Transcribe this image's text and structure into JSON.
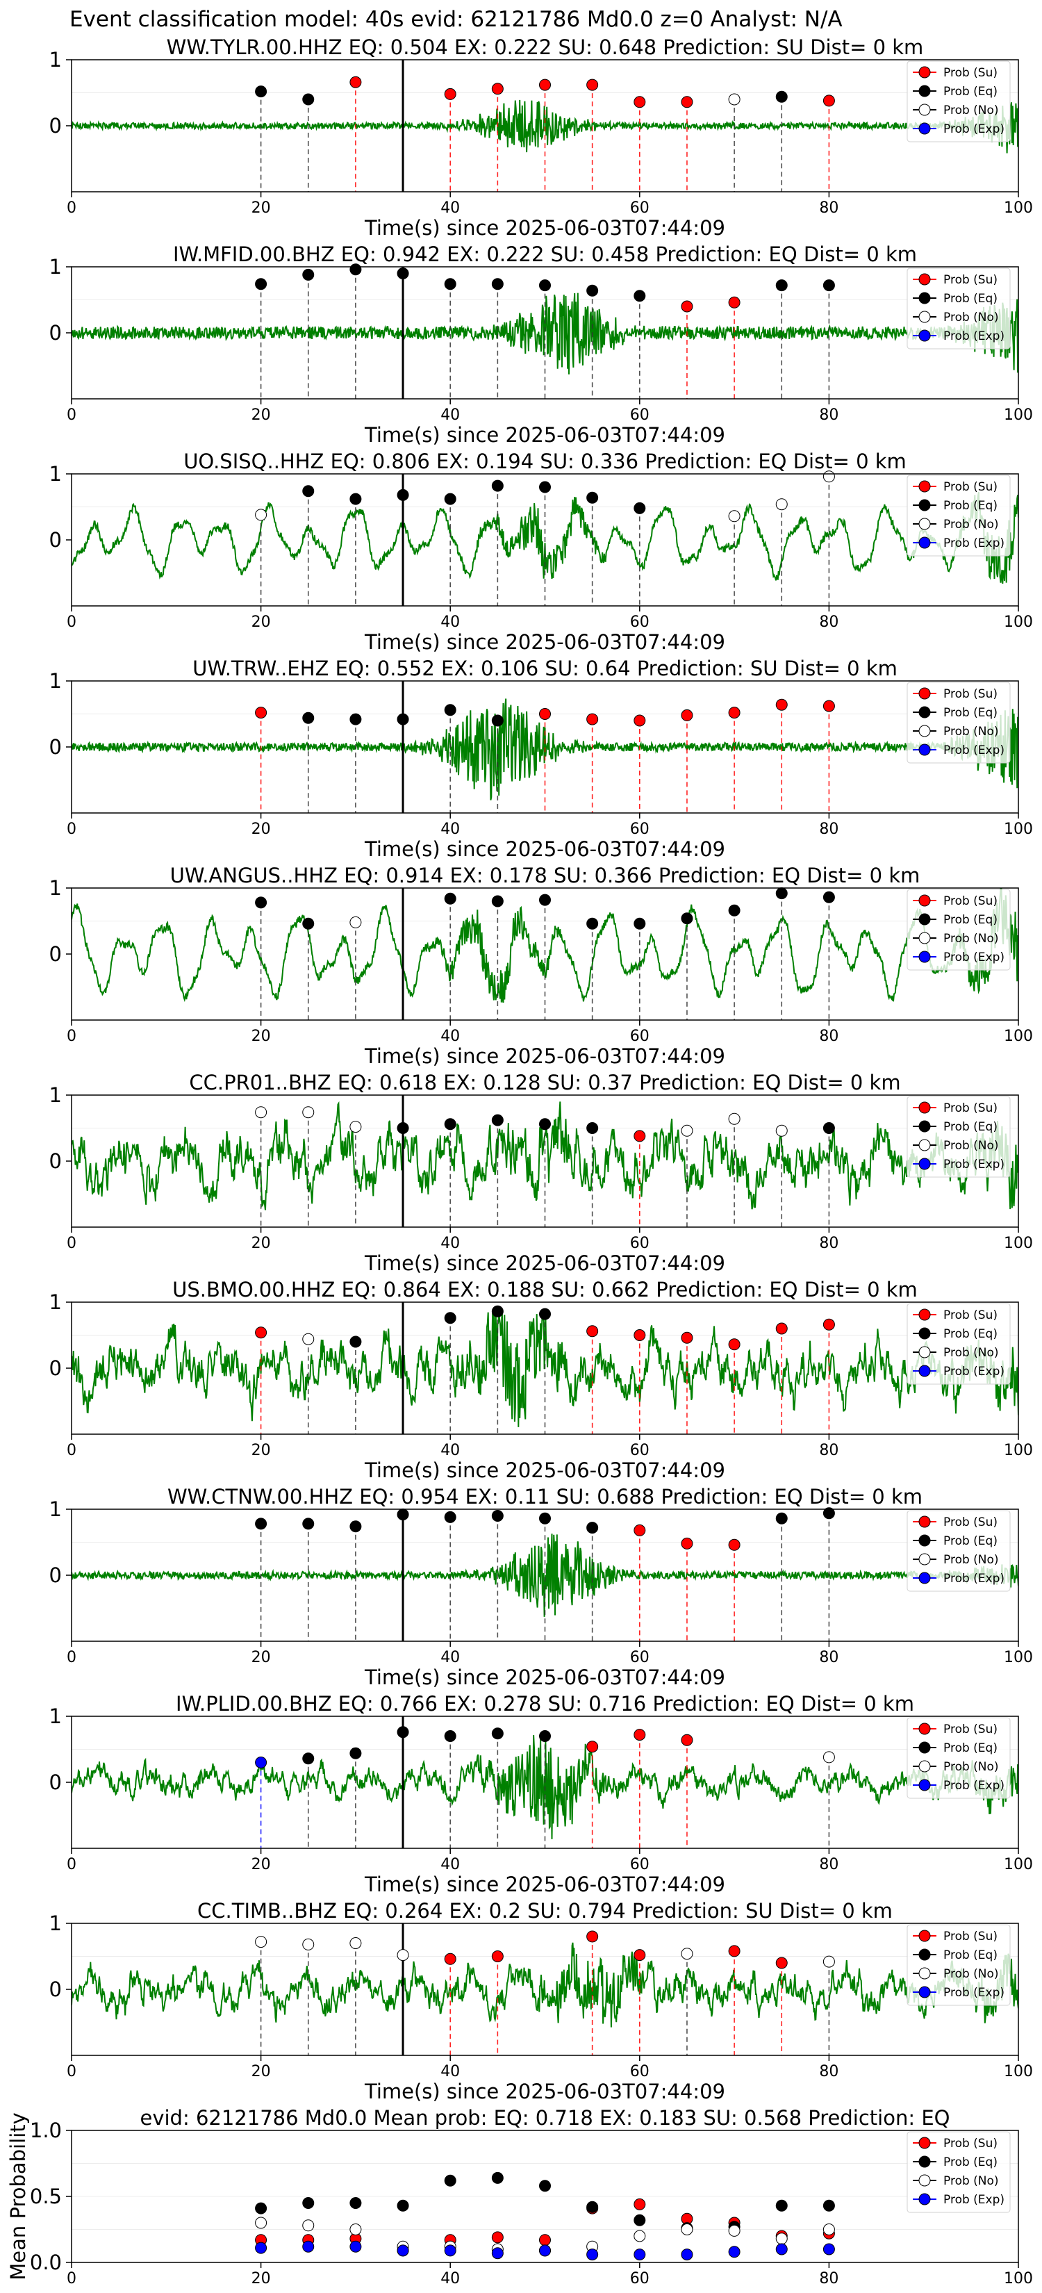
{
  "figure_title": "Event classification model: 40s evid: 62121786 Md0.0 z=0 Analyst: N/A",
  "legend_labels": [
    "Prob (Su)",
    "Prob (Eq)",
    "Prob (No)",
    "Prob (Exp)"
  ],
  "colors": {
    "su": "#ff0000",
    "eq": "#000000",
    "no": "#ffffff",
    "exp": "#0000ff",
    "waveform": "#008000"
  },
  "chart_data": [
    {
      "type": "line",
      "title": "WW.TYLR.00.HHZ   EQ: 0.504  EX: 0.222  SU: 0.648   Prediction: SU    Dist= 0 km",
      "xlabel": "Time(s) since 2025-06-03T07:44:09",
      "xlim": [
        0,
        100
      ],
      "ylim": [
        -1,
        1
      ],
      "xticks": [
        "0",
        "20",
        "40",
        "60",
        "80",
        "100"
      ],
      "yticks": [
        "1",
        "0"
      ],
      "waveform": {
        "style": "quiet",
        "amp": 0.06,
        "burst_center": 48,
        "burst_amp": 0.35,
        "tail_amp": 0.45
      },
      "pick_time": 35,
      "points": [
        {
          "x": 20,
          "y": 0.52,
          "cls": "eq"
        },
        {
          "x": 25,
          "y": 0.4,
          "cls": "eq"
        },
        {
          "x": 30,
          "y": 0.66,
          "cls": "su"
        },
        {
          "x": 40,
          "y": 0.48,
          "cls": "su"
        },
        {
          "x": 45,
          "y": 0.56,
          "cls": "su"
        },
        {
          "x": 50,
          "y": 0.62,
          "cls": "su"
        },
        {
          "x": 55,
          "y": 0.62,
          "cls": "su"
        },
        {
          "x": 60,
          "y": 0.36,
          "cls": "su"
        },
        {
          "x": 65,
          "y": 0.36,
          "cls": "su"
        },
        {
          "x": 70,
          "y": 0.4,
          "cls": "no"
        },
        {
          "x": 75,
          "y": 0.44,
          "cls": "eq"
        },
        {
          "x": 80,
          "y": 0.38,
          "cls": "su"
        }
      ]
    },
    {
      "type": "line",
      "title": "IW.MFID.00.BHZ   EQ: 0.942  EX: 0.222  SU: 0.458   Prediction: EQ    Dist= 0 km",
      "xlabel": "Time(s) since 2025-06-03T07:44:09",
      "xlim": [
        0,
        100
      ],
      "ylim": [
        -1,
        1
      ],
      "xticks": [
        "0",
        "20",
        "40",
        "60",
        "80",
        "100"
      ],
      "yticks": [
        "1",
        "0"
      ],
      "waveform": {
        "style": "quiet",
        "amp": 0.12,
        "burst_center": 52,
        "burst_amp": 0.6,
        "tail_amp": 0.6
      },
      "pick_time": 35,
      "points": [
        {
          "x": 20,
          "y": 0.74,
          "cls": "eq"
        },
        {
          "x": 25,
          "y": 0.88,
          "cls": "eq"
        },
        {
          "x": 30,
          "y": 0.96,
          "cls": "eq"
        },
        {
          "x": 35,
          "y": 0.9,
          "cls": "eq"
        },
        {
          "x": 40,
          "y": 0.74,
          "cls": "eq"
        },
        {
          "x": 45,
          "y": 0.74,
          "cls": "eq"
        },
        {
          "x": 50,
          "y": 0.72,
          "cls": "eq"
        },
        {
          "x": 55,
          "y": 0.64,
          "cls": "eq"
        },
        {
          "x": 60,
          "y": 0.56,
          "cls": "eq"
        },
        {
          "x": 65,
          "y": 0.4,
          "cls": "su"
        },
        {
          "x": 70,
          "y": 0.46,
          "cls": "su"
        },
        {
          "x": 75,
          "y": 0.72,
          "cls": "eq"
        },
        {
          "x": 80,
          "y": 0.72,
          "cls": "eq"
        }
      ]
    },
    {
      "type": "line",
      "title": "UO.SISQ..HHZ  EQ: 0.806  EX: 0.194  SU: 0.336   Prediction: EQ    Dist= 0 km",
      "xlabel": "Time(s) since 2025-06-03T07:44:09",
      "xlim": [
        0,
        100
      ],
      "ylim": [
        -1,
        1
      ],
      "xticks": [
        "0",
        "20",
        "40",
        "60",
        "80",
        "100"
      ],
      "yticks": [
        "1",
        "0"
      ],
      "waveform": {
        "style": "smooth",
        "amp": 0.55,
        "burst_center": 50,
        "burst_amp": 0.3,
        "tail_amp": 0.5
      },
      "pick_time": 35,
      "points": [
        {
          "x": 20,
          "y": 0.38,
          "cls": "no"
        },
        {
          "x": 25,
          "y": 0.74,
          "cls": "eq"
        },
        {
          "x": 30,
          "y": 0.62,
          "cls": "eq"
        },
        {
          "x": 35,
          "y": 0.68,
          "cls": "eq"
        },
        {
          "x": 40,
          "y": 0.62,
          "cls": "eq"
        },
        {
          "x": 45,
          "y": 0.82,
          "cls": "eq"
        },
        {
          "x": 50,
          "y": 0.8,
          "cls": "eq"
        },
        {
          "x": 55,
          "y": 0.64,
          "cls": "eq"
        },
        {
          "x": 60,
          "y": 0.48,
          "cls": "eq"
        },
        {
          "x": 70,
          "y": 0.36,
          "cls": "no"
        },
        {
          "x": 75,
          "y": 0.54,
          "cls": "no"
        },
        {
          "x": 80,
          "y": 0.96,
          "cls": "no"
        }
      ]
    },
    {
      "type": "line",
      "title": "UW.TRW..EHZ   EQ: 0.552  EX: 0.106  SU: 0.64   Prediction: SU    Dist= 0 km",
      "xlabel": "Time(s) since 2025-06-03T07:44:09",
      "xlim": [
        0,
        100
      ],
      "ylim": [
        -1,
        1
      ],
      "xticks": [
        "0",
        "20",
        "40",
        "60",
        "80",
        "100"
      ],
      "yticks": [
        "1",
        "0"
      ],
      "waveform": {
        "style": "quiet",
        "amp": 0.08,
        "burst_center": 45,
        "burst_amp": 0.75,
        "tail_amp": 0.7
      },
      "pick_time": 35,
      "points": [
        {
          "x": 20,
          "y": 0.52,
          "cls": "su"
        },
        {
          "x": 25,
          "y": 0.44,
          "cls": "eq"
        },
        {
          "x": 30,
          "y": 0.42,
          "cls": "eq"
        },
        {
          "x": 35,
          "y": 0.42,
          "cls": "eq"
        },
        {
          "x": 40,
          "y": 0.56,
          "cls": "eq"
        },
        {
          "x": 45,
          "y": 0.4,
          "cls": "eq"
        },
        {
          "x": 50,
          "y": 0.5,
          "cls": "su"
        },
        {
          "x": 55,
          "y": 0.42,
          "cls": "su"
        },
        {
          "x": 60,
          "y": 0.4,
          "cls": "su"
        },
        {
          "x": 65,
          "y": 0.48,
          "cls": "su"
        },
        {
          "x": 70,
          "y": 0.52,
          "cls": "su"
        },
        {
          "x": 75,
          "y": 0.64,
          "cls": "su"
        },
        {
          "x": 80,
          "y": 0.62,
          "cls": "su"
        }
      ]
    },
    {
      "type": "line",
      "title": "UW.ANGUS..HHZ   EQ: 0.914  EX: 0.178  SU: 0.366   Prediction: EQ    Dist= 0 km",
      "xlabel": "Time(s) since 2025-06-03T07:44:09",
      "xlim": [
        0,
        100
      ],
      "ylim": [
        -1,
        1
      ],
      "xticks": [
        "0",
        "20",
        "40",
        "60",
        "80",
        "100"
      ],
      "yticks": [
        "1",
        "0"
      ],
      "waveform": {
        "style": "smooth",
        "amp": 0.7,
        "burst_center": 45,
        "burst_amp": 0.3,
        "tail_amp": 0.6
      },
      "pick_time": 35,
      "points": [
        {
          "x": 20,
          "y": 0.78,
          "cls": "eq"
        },
        {
          "x": 25,
          "y": 0.46,
          "cls": "eq"
        },
        {
          "x": 30,
          "y": 0.48,
          "cls": "no"
        },
        {
          "x": 40,
          "y": 0.84,
          "cls": "eq"
        },
        {
          "x": 45,
          "y": 0.8,
          "cls": "eq"
        },
        {
          "x": 50,
          "y": 0.82,
          "cls": "eq"
        },
        {
          "x": 55,
          "y": 0.46,
          "cls": "eq"
        },
        {
          "x": 60,
          "y": 0.46,
          "cls": "eq"
        },
        {
          "x": 65,
          "y": 0.54,
          "cls": "eq"
        },
        {
          "x": 70,
          "y": 0.66,
          "cls": "eq"
        },
        {
          "x": 75,
          "y": 0.92,
          "cls": "eq"
        },
        {
          "x": 80,
          "y": 0.86,
          "cls": "eq"
        }
      ]
    },
    {
      "type": "line",
      "title": "CC.PR01..BHZ   EQ: 0.618  EX: 0.128  SU: 0.37   Prediction: EQ    Dist= 0 km",
      "xlabel": "Time(s) since 2025-06-03T07:44:09",
      "xlim": [
        0,
        100
      ],
      "ylim": [
        -1,
        1
      ],
      "xticks": [
        "0",
        "20",
        "40",
        "60",
        "80",
        "100"
      ],
      "yticks": [
        "1",
        "0"
      ],
      "waveform": {
        "style": "noisy",
        "amp": 0.45,
        "burst_center": 50,
        "burst_amp": 0.2,
        "tail_amp": 0.45
      },
      "pick_time": 35,
      "points": [
        {
          "x": 20,
          "y": 0.74,
          "cls": "no"
        },
        {
          "x": 25,
          "y": 0.74,
          "cls": "no"
        },
        {
          "x": 30,
          "y": 0.52,
          "cls": "no"
        },
        {
          "x": 35,
          "y": 0.5,
          "cls": "eq"
        },
        {
          "x": 40,
          "y": 0.56,
          "cls": "eq"
        },
        {
          "x": 45,
          "y": 0.62,
          "cls": "eq"
        },
        {
          "x": 50,
          "y": 0.56,
          "cls": "eq"
        },
        {
          "x": 55,
          "y": 0.5,
          "cls": "eq"
        },
        {
          "x": 60,
          "y": 0.38,
          "cls": "su"
        },
        {
          "x": 65,
          "y": 0.46,
          "cls": "no"
        },
        {
          "x": 70,
          "y": 0.64,
          "cls": "no"
        },
        {
          "x": 75,
          "y": 0.46,
          "cls": "no"
        },
        {
          "x": 80,
          "y": 0.5,
          "cls": "eq"
        }
      ]
    },
    {
      "type": "line",
      "title": "US.BMO.00.HHZ   EQ: 0.864  EX: 0.188  SU: 0.662   Prediction: EQ    Dist= 0 km",
      "xlabel": "Time(s) since 2025-06-03T07:44:09",
      "xlim": [
        0,
        100
      ],
      "ylim": [
        -1,
        1
      ],
      "xticks": [
        "0",
        "20",
        "40",
        "60",
        "80",
        "100"
      ],
      "yticks": [
        "1",
        "0"
      ],
      "waveform": {
        "style": "noisy",
        "amp": 0.4,
        "burst_center": 47,
        "burst_amp": 0.55,
        "tail_amp": 0.4
      },
      "pick_time": 35,
      "points": [
        {
          "x": 20,
          "y": 0.54,
          "cls": "su"
        },
        {
          "x": 25,
          "y": 0.44,
          "cls": "no"
        },
        {
          "x": 30,
          "y": 0.4,
          "cls": "eq"
        },
        {
          "x": 40,
          "y": 0.76,
          "cls": "eq"
        },
        {
          "x": 45,
          "y": 0.86,
          "cls": "eq"
        },
        {
          "x": 50,
          "y": 0.82,
          "cls": "eq"
        },
        {
          "x": 55,
          "y": 0.56,
          "cls": "su"
        },
        {
          "x": 60,
          "y": 0.5,
          "cls": "su"
        },
        {
          "x": 65,
          "y": 0.46,
          "cls": "su"
        },
        {
          "x": 70,
          "y": 0.36,
          "cls": "su"
        },
        {
          "x": 75,
          "y": 0.6,
          "cls": "su"
        },
        {
          "x": 80,
          "y": 0.66,
          "cls": "su"
        }
      ]
    },
    {
      "type": "line",
      "title": "WW.CTNW.00.HHZ   EQ: 0.954  EX: 0.11  SU: 0.688   Prediction: EQ    Dist= 0 km",
      "xlabel": "Time(s) since 2025-06-03T07:44:09",
      "xlim": [
        0,
        100
      ],
      "ylim": [
        -1,
        1
      ],
      "xticks": [
        "0",
        "20",
        "40",
        "60",
        "80",
        "100"
      ],
      "yticks": [
        "1",
        "0"
      ],
      "waveform": {
        "style": "quiet",
        "amp": 0.07,
        "burst_center": 51,
        "burst_amp": 0.55,
        "tail_amp": 0.2
      },
      "pick_time": 35,
      "points": [
        {
          "x": 20,
          "y": 0.78,
          "cls": "eq"
        },
        {
          "x": 25,
          "y": 0.78,
          "cls": "eq"
        },
        {
          "x": 30,
          "y": 0.74,
          "cls": "eq"
        },
        {
          "x": 35,
          "y": 0.92,
          "cls": "eq"
        },
        {
          "x": 40,
          "y": 0.88,
          "cls": "eq"
        },
        {
          "x": 45,
          "y": 0.9,
          "cls": "eq"
        },
        {
          "x": 50,
          "y": 0.86,
          "cls": "eq"
        },
        {
          "x": 55,
          "y": 0.72,
          "cls": "eq"
        },
        {
          "x": 60,
          "y": 0.68,
          "cls": "su"
        },
        {
          "x": 65,
          "y": 0.48,
          "cls": "su"
        },
        {
          "x": 70,
          "y": 0.46,
          "cls": "su"
        },
        {
          "x": 75,
          "y": 0.86,
          "cls": "eq"
        },
        {
          "x": 80,
          "y": 0.94,
          "cls": "eq"
        }
      ]
    },
    {
      "type": "line",
      "title": "IW.PLID.00.BHZ   EQ: 0.766  EX: 0.278  SU: 0.716   Prediction: EQ    Dist= 0 km",
      "xlabel": "Time(s) since 2025-06-03T07:44:09",
      "xlim": [
        0,
        100
      ],
      "ylim": [
        -1,
        1
      ],
      "xticks": [
        "0",
        "20",
        "40",
        "60",
        "80",
        "100"
      ],
      "yticks": [
        "1",
        "0"
      ],
      "waveform": {
        "style": "noisy",
        "amp": 0.22,
        "burst_center": 50,
        "burst_amp": 0.65,
        "tail_amp": 0.3
      },
      "pick_time": 35,
      "points": [
        {
          "x": 20,
          "y": 0.3,
          "cls": "exp"
        },
        {
          "x": 25,
          "y": 0.36,
          "cls": "eq"
        },
        {
          "x": 30,
          "y": 0.44,
          "cls": "eq"
        },
        {
          "x": 35,
          "y": 0.76,
          "cls": "eq"
        },
        {
          "x": 40,
          "y": 0.7,
          "cls": "eq"
        },
        {
          "x": 45,
          "y": 0.74,
          "cls": "eq"
        },
        {
          "x": 50,
          "y": 0.7,
          "cls": "eq"
        },
        {
          "x": 55,
          "y": 0.54,
          "cls": "su"
        },
        {
          "x": 60,
          "y": 0.72,
          "cls": "su"
        },
        {
          "x": 65,
          "y": 0.64,
          "cls": "su"
        },
        {
          "x": 80,
          "y": 0.38,
          "cls": "no"
        }
      ]
    },
    {
      "type": "line",
      "title": "CC.TIMB..BHZ   EQ: 0.264  EX: 0.2  SU: 0.794   Prediction: SU    Dist= 0 km",
      "xlabel": "Time(s) since 2025-06-03T07:44:09",
      "xlim": [
        0,
        100
      ],
      "ylim": [
        -1,
        1
      ],
      "xticks": [
        "0",
        "20",
        "40",
        "60",
        "80",
        "100"
      ],
      "yticks": [
        "1",
        "0"
      ],
      "waveform": {
        "style": "noisy",
        "amp": 0.3,
        "burst_center": 55,
        "burst_amp": 0.4,
        "tail_amp": 0.4
      },
      "pick_time": 35,
      "points": [
        {
          "x": 20,
          "y": 0.72,
          "cls": "no"
        },
        {
          "x": 25,
          "y": 0.68,
          "cls": "no"
        },
        {
          "x": 30,
          "y": 0.7,
          "cls": "no"
        },
        {
          "x": 35,
          "y": 0.52,
          "cls": "no"
        },
        {
          "x": 40,
          "y": 0.46,
          "cls": "su"
        },
        {
          "x": 45,
          "y": 0.5,
          "cls": "su"
        },
        {
          "x": 55,
          "y": 0.8,
          "cls": "su"
        },
        {
          "x": 60,
          "y": 0.52,
          "cls": "su"
        },
        {
          "x": 65,
          "y": 0.54,
          "cls": "no"
        },
        {
          "x": 70,
          "y": 0.58,
          "cls": "su"
        },
        {
          "x": 75,
          "y": 0.4,
          "cls": "su"
        },
        {
          "x": 80,
          "y": 0.42,
          "cls": "no"
        }
      ]
    },
    {
      "type": "scatter",
      "title": "evid: 62121786  Md0.0   Mean prob:   EQ: 0.718  EX: 0.183  SU: 0.568   Prediction: EQ",
      "ylabel": "Mean Probability",
      "xlim": [
        0,
        100
      ],
      "ylim": [
        0,
        1
      ],
      "xticks": [
        "0",
        "20",
        "40",
        "60",
        "80",
        "100"
      ],
      "yticks": [
        {
          "v": 1,
          "label": "1.0"
        },
        {
          "v": 0.5,
          "label": "0.5"
        },
        {
          "v": 0,
          "label": "0.0"
        }
      ],
      "x": [
        20,
        25,
        30,
        35,
        40,
        45,
        50,
        55,
        60,
        65,
        70,
        75,
        80
      ],
      "series": [
        {
          "name": "Prob (Su)",
          "cls": "su",
          "values": [
            0.17,
            0.17,
            0.18,
            0.09,
            0.17,
            0.19,
            0.17,
            0.41,
            0.44,
            0.33,
            0.3,
            0.2,
            0.22
          ]
        },
        {
          "name": "Prob (Eq)",
          "cls": "eq",
          "values": [
            0.41,
            0.45,
            0.45,
            0.43,
            0.62,
            0.64,
            0.58,
            0.42,
            0.32,
            0.26,
            0.27,
            0.43,
            0.43
          ]
        },
        {
          "name": "Prob (No)",
          "cls": "no",
          "values": [
            0.3,
            0.28,
            0.25,
            0.12,
            0.12,
            0.1,
            0.09,
            0.12,
            0.2,
            0.25,
            0.24,
            0.18,
            0.25
          ]
        },
        {
          "name": "Prob (Exp)",
          "cls": "exp",
          "values": [
            0.11,
            0.12,
            0.12,
            0.09,
            0.09,
            0.07,
            0.09,
            0.06,
            0.06,
            0.06,
            0.08,
            0.1,
            0.1
          ]
        }
      ]
    }
  ]
}
